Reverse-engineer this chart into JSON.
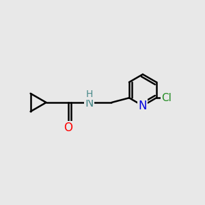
{
  "background_color": "#e8e8e8",
  "bond_color": "#000000",
  "bond_width": 1.8,
  "atom_colors": {
    "O": "#ff0000",
    "N_amine": "#4a8a8a",
    "N_pyridine": "#0000dd",
    "Cl": "#228b22",
    "H": "#4a8a8a",
    "C": "#000000"
  },
  "font_size_atom": 10,
  "figsize": [
    3.0,
    3.0
  ],
  "dpi": 100,
  "xlim": [
    0,
    10
  ],
  "ylim": [
    0,
    10
  ]
}
